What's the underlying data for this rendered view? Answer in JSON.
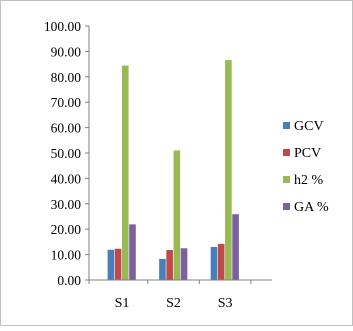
{
  "chart_data": {
    "type": "bar",
    "categories": [
      "S1",
      "S2",
      "S3"
    ],
    "series": [
      {
        "name": "GCV",
        "color": "#4A7EBB",
        "values": [
          11.9,
          8.3,
          13.0
        ]
      },
      {
        "name": "PCV",
        "color": "#BE4B48",
        "values": [
          12.3,
          11.8,
          14.2
        ]
      },
      {
        "name": "h2 %",
        "color": "#98B954",
        "values": [
          84.4,
          51.0,
          86.6
        ]
      },
      {
        "name": "GA %",
        "color": "#7D60A0",
        "values": [
          21.9,
          12.5,
          25.9
        ]
      }
    ],
    "y_ticks": [
      "0.00",
      "10.00",
      "20.00",
      "30.00",
      "40.00",
      "50.00",
      "60.00",
      "70.00",
      "80.00",
      "90.00",
      "100.00"
    ],
    "ylim": [
      0,
      100
    ],
    "grid": false,
    "legend_position": "right"
  }
}
